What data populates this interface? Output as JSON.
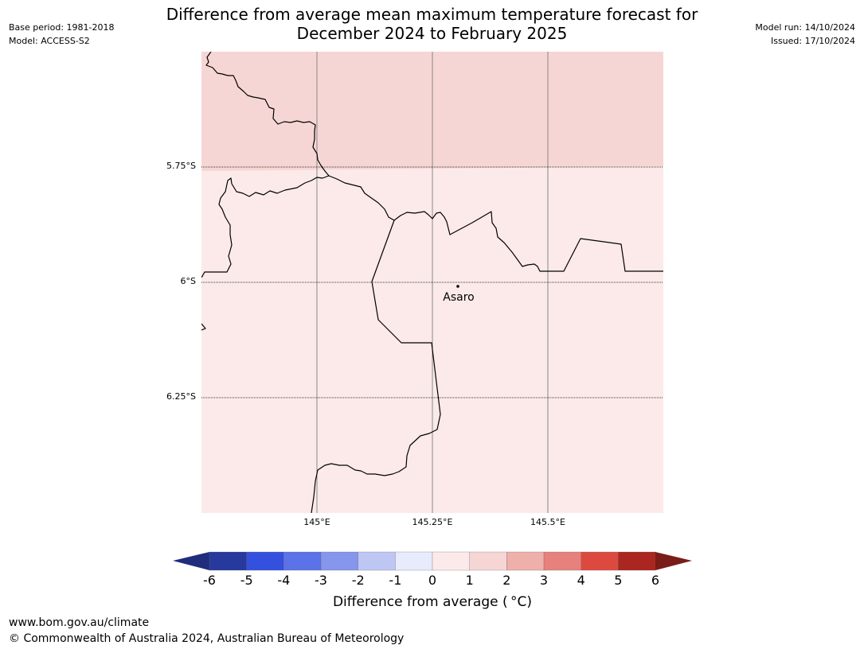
{
  "title_line1": "Difference from average mean maximum temperature forecast for",
  "title_line2": "December 2024 to February 2025",
  "meta_left": [
    "Base period: 1981-2018",
    "Model: ACCESS-S2"
  ],
  "meta_right": [
    "Model run: 14/10/2024",
    "Issued: 17/10/2024"
  ],
  "map": {
    "lat_labels": [
      "5.75°S",
      "6°S",
      "6.25°S"
    ],
    "lon_labels": [
      "145°E",
      "145.25°E",
      "145.5°E"
    ],
    "place_label": "Asaro",
    "anomaly_bands": [
      {
        "region": "north",
        "anomaly_range": "1 to 2",
        "color": "#f6d6d4"
      },
      {
        "region": "south",
        "anomaly_range": "0 to 1",
        "color": "#fbeae9"
      }
    ]
  },
  "colorbar": {
    "ticks": [
      "-6",
      "-5",
      "-4",
      "-3",
      "-2",
      "-1",
      "0",
      "1",
      "2",
      "3",
      "4",
      "5",
      "6"
    ],
    "colors": [
      "#27399c",
      "#3450de",
      "#5b72e8",
      "#8696ec",
      "#bec7f3",
      "#e8ebfb",
      "#fbeae9",
      "#f6d6d4",
      "#efafab",
      "#e6827b",
      "#dc4a3f",
      "#ab2620"
    ],
    "under_color": "#202d7c",
    "over_color": "#7a1c17",
    "label": "Difference from average ( °C)"
  },
  "footer": {
    "url": "www.bom.gov.au/climate",
    "copyright": "© Commonwealth of Australia 2024, Australian Bureau of Meteorology"
  }
}
